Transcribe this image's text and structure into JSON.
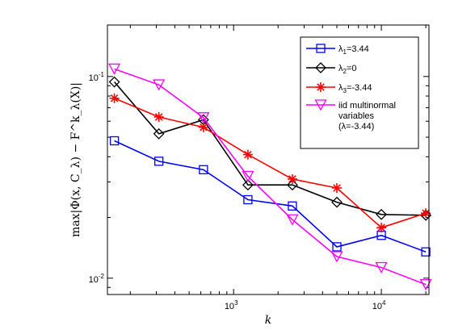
{
  "chart_data": {
    "type": "line",
    "xscale": "log",
    "yscale": "log",
    "xlim": [
      140,
      21000
    ],
    "ylim": [
      0.0083,
      0.18
    ],
    "xticks": [
      {
        "value": 1000,
        "base": "10",
        "exp": "3"
      },
      {
        "value": 10000,
        "base": "10",
        "exp": "4"
      }
    ],
    "yticks": [
      {
        "value": 0.01,
        "base": "10",
        "exp": "-2"
      },
      {
        "value": 0.1,
        "base": "10",
        "exp": "-1"
      }
    ],
    "xlabel": "k",
    "ylabel": "max|Φ(x, C_λ) − F^k_λ(X)|",
    "grid": false,
    "legend_position": "top-right",
    "x": [
      156,
      312,
      625,
      1250,
      2500,
      5000,
      10000,
      20000
    ],
    "series": [
      {
        "name": "λ1=3.44",
        "name_main": "λ",
        "name_sub": "1",
        "name_rest": "=3.44",
        "color": "#0000ff",
        "marker": "square",
        "values": [
          0.048,
          0.038,
          0.0345,
          0.0245,
          0.0228,
          0.0143,
          0.0163,
          0.0135
        ]
      },
      {
        "name": "λ2=0",
        "name_main": "λ",
        "name_sub": "2",
        "name_rest": "=0",
        "color": "#000000",
        "marker": "diamond",
        "values": [
          0.094,
          0.052,
          0.061,
          0.029,
          0.029,
          0.0238,
          0.0207,
          0.0205
        ]
      },
      {
        "name": "λ3=-3.44",
        "name_main": "λ",
        "name_sub": "3",
        "name_rest": "=-3.44",
        "color": "#ff0000",
        "marker": "star",
        "values": [
          0.078,
          0.063,
          0.056,
          0.041,
          0.031,
          0.028,
          0.0178,
          0.021
        ]
      },
      {
        "name": "iid multinormal variables (λ=-3.44)",
        "name_lines": [
          "iid multinormal",
          "variables",
          "(λ=-3.44)"
        ],
        "color": "#ff00ff",
        "marker": "triangle-down",
        "values": [
          0.109,
          0.091,
          0.0625,
          0.032,
          0.0195,
          0.0128,
          0.0113,
          0.0093
        ]
      }
    ]
  }
}
